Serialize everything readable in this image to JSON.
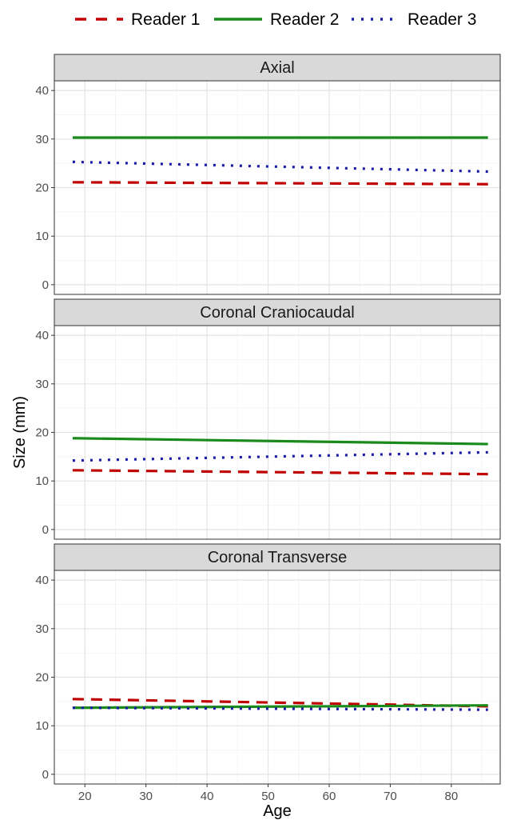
{
  "chart_data": {
    "type": "line",
    "xlabel": "Age",
    "ylabel": "Size (mm)",
    "x_ticks": [
      20,
      30,
      40,
      50,
      60,
      70,
      80
    ],
    "y_ticks": [
      0,
      10,
      20,
      30,
      40
    ],
    "xlim": [
      15,
      88
    ],
    "ylim": [
      -2,
      42
    ],
    "grid": true,
    "legend_position": "top",
    "x": [
      18,
      86
    ],
    "series_styles": [
      {
        "name": "Reader 1",
        "color": "#c00000",
        "dash": "dashed"
      },
      {
        "name": "Reader 2",
        "color": "#1a8a1a",
        "dash": "solid"
      },
      {
        "name": "Reader 3",
        "color": "#1a1aa8",
        "dash": "dotted"
      }
    ],
    "panels": [
      {
        "title": "Axial",
        "series": [
          {
            "name": "Reader 1",
            "values": [
              21.1,
              20.7
            ]
          },
          {
            "name": "Reader 2",
            "values": [
              30.3,
              30.3
            ]
          },
          {
            "name": "Reader 3",
            "values": [
              25.3,
              23.3
            ]
          }
        ]
      },
      {
        "title": "Coronal Craniocaudal",
        "series": [
          {
            "name": "Reader 1",
            "values": [
              12.2,
              11.4
            ]
          },
          {
            "name": "Reader 2",
            "values": [
              18.8,
              17.6
            ]
          },
          {
            "name": "Reader 3",
            "values": [
              14.2,
              15.9
            ]
          }
        ]
      },
      {
        "title": "Coronal Transverse",
        "series": [
          {
            "name": "Reader 1",
            "values": [
              15.5,
              14.0
            ]
          },
          {
            "name": "Reader 2",
            "values": [
              13.7,
              14.2
            ]
          },
          {
            "name": "Reader 3",
            "values": [
              13.7,
              13.3
            ]
          }
        ]
      }
    ]
  }
}
